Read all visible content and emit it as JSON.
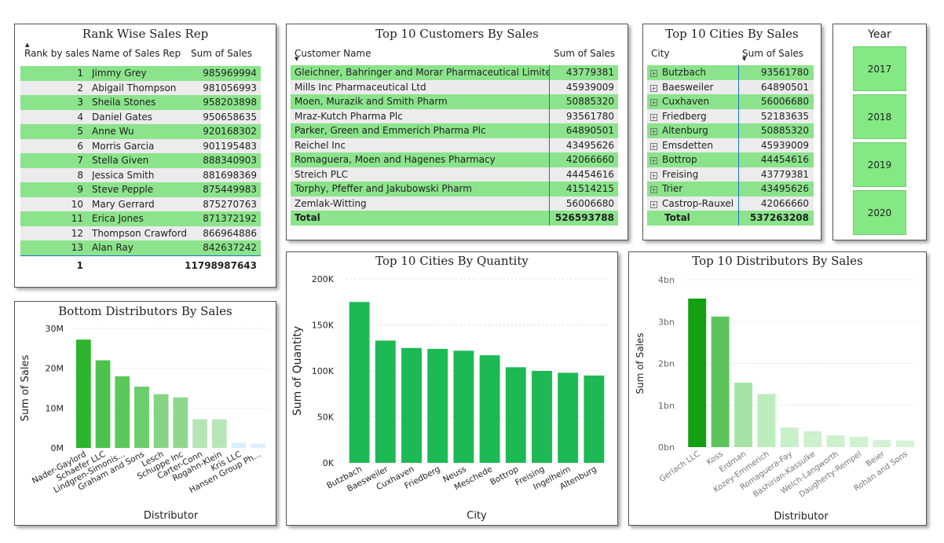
{
  "rank_panel": {
    "title": "Rank Wise Sales Rep",
    "headers": [
      "Rank by sales",
      "Name of Sales Rep",
      "Sum of Sales"
    ],
    "rows": [
      {
        "rank": "1",
        "name": "Jimmy Grey",
        "sales": "985969994"
      },
      {
        "rank": "2",
        "name": "Abigail Thompson",
        "sales": "981056993"
      },
      {
        "rank": "3",
        "name": "Sheila Stones",
        "sales": "958203898"
      },
      {
        "rank": "4",
        "name": "Daniel Gates",
        "sales": "950658635"
      },
      {
        "rank": "5",
        "name": "Anne Wu",
        "sales": "920168302"
      },
      {
        "rank": "6",
        "name": "Morris Garcia",
        "sales": "901195483"
      },
      {
        "rank": "7",
        "name": "Stella Given",
        "sales": "888340903"
      },
      {
        "rank": "8",
        "name": "Jessica Smith",
        "sales": "881698369"
      },
      {
        "rank": "9",
        "name": "Steve Pepple",
        "sales": "875449983"
      },
      {
        "rank": "10",
        "name": "Mary Gerrard",
        "sales": "875270763"
      },
      {
        "rank": "11",
        "name": "Erica Jones",
        "sales": "871372192"
      },
      {
        "rank": "12",
        "name": "Thompson Crawford",
        "sales": "866964886"
      },
      {
        "rank": "13",
        "name": "Alan Ray",
        "sales": "842637242"
      }
    ],
    "total_rank": "1",
    "total_sales": "11798987643"
  },
  "customers_panel": {
    "title": "Top 10 Customers By Sales",
    "headers": [
      "Customer Name",
      "Sum of Sales"
    ],
    "rows": [
      {
        "name": "Gleichner, Bahringer and Morar Pharmaceutical Limited",
        "sales": "43779381"
      },
      {
        "name": "Mills Inc Pharmaceutical Ltd",
        "sales": "45939009"
      },
      {
        "name": "Moen, Murazik and Smith Pharm",
        "sales": "50885320"
      },
      {
        "name": "Mraz-Kutch Pharma Plc",
        "sales": "93561780"
      },
      {
        "name": "Parker, Green and Emmerich Pharma Plc",
        "sales": "64890501"
      },
      {
        "name": "Reichel Inc",
        "sales": "43495626"
      },
      {
        "name": "Romaguera, Moen and Hagenes Pharmacy",
        "sales": "42066660"
      },
      {
        "name": "Streich PLC",
        "sales": "44454616"
      },
      {
        "name": "Torphy, Pfeffer and Jakubowski Pharm",
        "sales": "41514215"
      },
      {
        "name": "Zemlak-Witting",
        "sales": "56006680"
      }
    ],
    "total_label": "Total",
    "total_sales": "526593788"
  },
  "cities_sales_panel": {
    "title": "Top 10 Cities By Sales",
    "headers": [
      "City",
      "Sum of Sales"
    ],
    "expand_glyph": "+",
    "rows": [
      {
        "city": "Butzbach",
        "sales": "93561780"
      },
      {
        "city": "Baesweiler",
        "sales": "64890501"
      },
      {
        "city": "Cuxhaven",
        "sales": "56006680"
      },
      {
        "city": "Friedberg",
        "sales": "52183635"
      },
      {
        "city": "Altenburg",
        "sales": "50885320"
      },
      {
        "city": "Emsdetten",
        "sales": "45939009"
      },
      {
        "city": "Bottrop",
        "sales": "44454616"
      },
      {
        "city": "Freising",
        "sales": "43779381"
      },
      {
        "city": "Trier",
        "sales": "43495626"
      },
      {
        "city": "Castrop-Rauxel",
        "sales": "42066660"
      }
    ],
    "total_label": "Total",
    "total_sales": "537263208"
  },
  "year_slicer": {
    "title": "Year",
    "years": [
      "2017",
      "2018",
      "2019",
      "2020"
    ]
  },
  "chart_data": [
    {
      "type": "bar",
      "title": "Bottom Distributors By Sales",
      "xlabel": "Distributor",
      "ylabel": "Sum of Sales",
      "categories": [
        "Nader-Gaylord",
        "Schaefer LLC",
        "Lindgren-Simonis...",
        "Graham and Sons",
        "Lesch",
        "Schuppe Inc",
        "Carter-Conn",
        "Rogahn-Klein",
        "Kris LLC",
        "Hansen Group Ph..."
      ],
      "values": [
        27200000,
        22000000,
        18000000,
        15400000,
        13500000,
        12700000,
        7200000,
        7200000,
        1300000,
        1100000
      ],
      "yticks": [
        "0M",
        "10M",
        "20M",
        "30M"
      ],
      "ylim": [
        0,
        30000000
      ],
      "colors": [
        "#2cb52c",
        "#4cc24c",
        "#5cc85c",
        "#6ccd6c",
        "#84d484",
        "#8ed88e",
        "#b5e4b5",
        "#b9e6b9",
        "#d9eeff",
        "#ddefff"
      ]
    },
    {
      "type": "bar",
      "title": "Top 10 Cities By Quantity",
      "xlabel": "City",
      "ylabel": "Sum of Quantity",
      "categories": [
        "Butzbach",
        "Baesweiler",
        "Cuxhaven",
        "Friedberg",
        "Neuss",
        "Meschede",
        "Bottrop",
        "Freising",
        "Ingelheim",
        "Altenburg"
      ],
      "values": [
        175000,
        133000,
        125000,
        124000,
        122000,
        117000,
        104000,
        100000,
        98000,
        95000
      ],
      "yticks": [
        "0K",
        "50K",
        "100K",
        "150K",
        "200K"
      ],
      "ylim": [
        0,
        200000
      ],
      "color": "#1db954"
    },
    {
      "type": "bar",
      "title": "Top 10 Distributors By Sales",
      "xlabel": "Distributor",
      "ylabel": "Sum of Sales",
      "categories": [
        "Gerlach LLC",
        "Koss",
        "Erdman",
        "Kozey-Emmerich",
        "Romaguera-Fay",
        "Bashirian-Kassulke",
        "Welch-Langworth",
        "Daugherty-Rempel",
        "Beier",
        "Rohan and Sons"
      ],
      "values": [
        3550000000,
        3120000000,
        1540000000,
        1270000000,
        470000000,
        380000000,
        280000000,
        250000000,
        170000000,
        160000000
      ],
      "yticks": [
        "0bn",
        "1bn",
        "2bn",
        "3bn",
        "4bn"
      ],
      "ylim": [
        0,
        4000000000
      ],
      "colors": [
        "#12a012",
        "#5cc45c",
        "#a6e3a6",
        "#bdecbd",
        "#c8f0c8",
        "#ccf1cc",
        "#cdf1cd",
        "#cff2cf",
        "#d2f3d2",
        "#d4f4d4"
      ]
    }
  ]
}
